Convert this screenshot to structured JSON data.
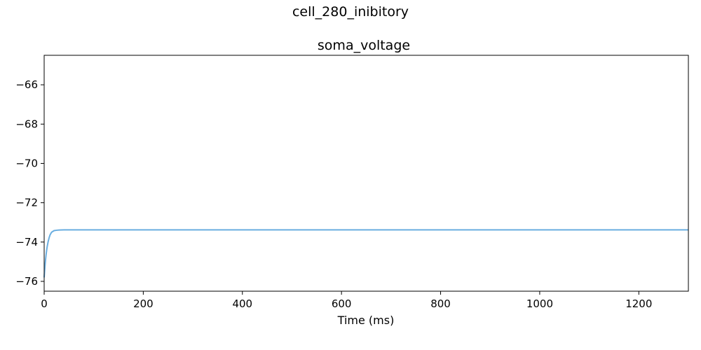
{
  "figure": {
    "suptitle": "cell_280_inibitory"
  },
  "chart_data": {
    "type": "line",
    "title": "soma_voltage",
    "xlabel": "Time (ms)",
    "ylabel": "",
    "xlim": [
      0,
      1300
    ],
    "ylim": [
      -76.5,
      -64.5
    ],
    "xticks": [
      0,
      200,
      400,
      600,
      800,
      1000,
      1200
    ],
    "yticks": [
      -76,
      -74,
      -72,
      -70,
      -68,
      -66
    ],
    "xtick_labels": [
      "0",
      "200",
      "400",
      "600",
      "800",
      "1000",
      "1200"
    ],
    "ytick_labels": [
      "−76",
      "−74",
      "−72",
      "−70",
      "−68",
      "−66"
    ],
    "grid": false,
    "legend": "none",
    "series": [
      {
        "color": "#6aaee0",
        "x": [
          0,
          1,
          2,
          3,
          4,
          5,
          6,
          8,
          10,
          12,
          15,
          20,
          25,
          30,
          40,
          60,
          100,
          200,
          400,
          600,
          800,
          1000,
          1200,
          1300
        ],
        "y": [
          -75.8,
          -75.45,
          -75.12,
          -74.85,
          -74.62,
          -74.42,
          -74.25,
          -73.98,
          -73.78,
          -73.63,
          -73.5,
          -73.42,
          -73.4,
          -73.39,
          -73.38,
          -73.38,
          -73.38,
          -73.38,
          -73.38,
          -73.38,
          -73.38,
          -73.38,
          -73.38,
          -73.38
        ]
      }
    ]
  }
}
